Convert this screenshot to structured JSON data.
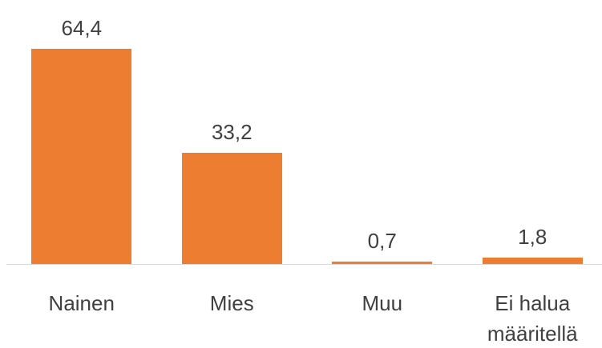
{
  "chart_data": {
    "type": "bar",
    "categories": [
      "Nainen",
      "Mies",
      "Muu",
      "Ei halua määritellä"
    ],
    "values": [
      64.4,
      33.2,
      0.7,
      1.8
    ],
    "value_labels": [
      "64,4",
      "33,2",
      "0,7",
      "1,8"
    ],
    "color": "#ed7d31"
  }
}
